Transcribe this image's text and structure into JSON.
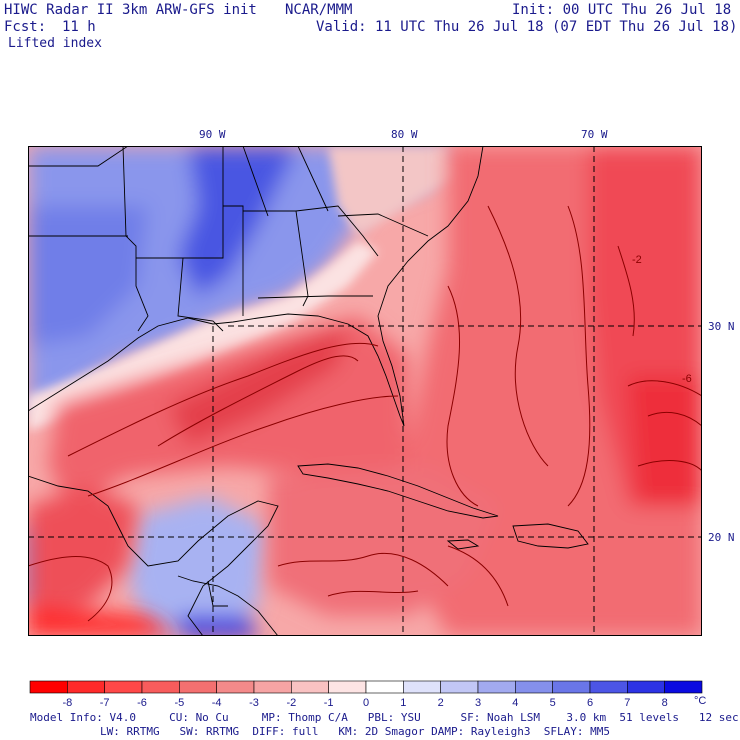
{
  "header": {
    "title_left": "HIWC Radar II 3km ARW-GFS init",
    "agency": "NCAR/MMM",
    "init": "Init: 00 UTC Thu 26 Jul 18",
    "fcst_label": "Fcst:",
    "fcst_value": "11 h",
    "valid": "Valid: 11 UTC Thu 26 Jul 18 (07 EDT Thu 26 Jul 18)",
    "field": "Lifted index"
  },
  "map": {
    "lon_labels": [
      "90 W",
      "80 W",
      "70 W"
    ],
    "lat_labels": [
      "30 N",
      "20 N"
    ],
    "contour_labels": [
      "-2",
      "-6"
    ],
    "colors": {
      "neg_strong": "#ff1a1a",
      "neg_mid": "#f2606a",
      "neg_light": "#f8b0b0",
      "neutral": "#fde8e6",
      "pos_light": "#c8cef5",
      "pos_mid": "#6f7ee8",
      "pos_strong": "#2a2ae0",
      "contour": "#8b0000",
      "border": "#000000"
    }
  },
  "colorbar": {
    "labels": [
      "-8",
      "-7",
      "-6",
      "-5",
      "-4",
      "-3",
      "-2",
      "-1",
      "0",
      "1",
      "2",
      "3",
      "4",
      "5",
      "6",
      "7",
      "8"
    ],
    "unit": "°C",
    "colors": [
      "#ff0000",
      "#ff2a2a",
      "#ff4848",
      "#f85c5c",
      "#f47070",
      "#f48a8a",
      "#f6a4a4",
      "#f9c2c2",
      "#fde4e4",
      "#ffffff",
      "#dfe2fb",
      "#c2c7f5",
      "#a2aaf0",
      "#8590ec",
      "#6a76e8",
      "#4c55e6",
      "#2c33e4",
      "#0a0ae0"
    ]
  },
  "model_info": {
    "line1": "Model Info: V4.0     CU: No Cu     MP: Thomp C/A   PBL: YSU      SF: Noah LSM    3.0 km  51 levels   12 sec",
    "line2": "LW: RRTMG   SW: RRTMG  DIFF: full   KM: 2D Smagor DAMP: Rayleigh3  SFLAY: MM5"
  }
}
